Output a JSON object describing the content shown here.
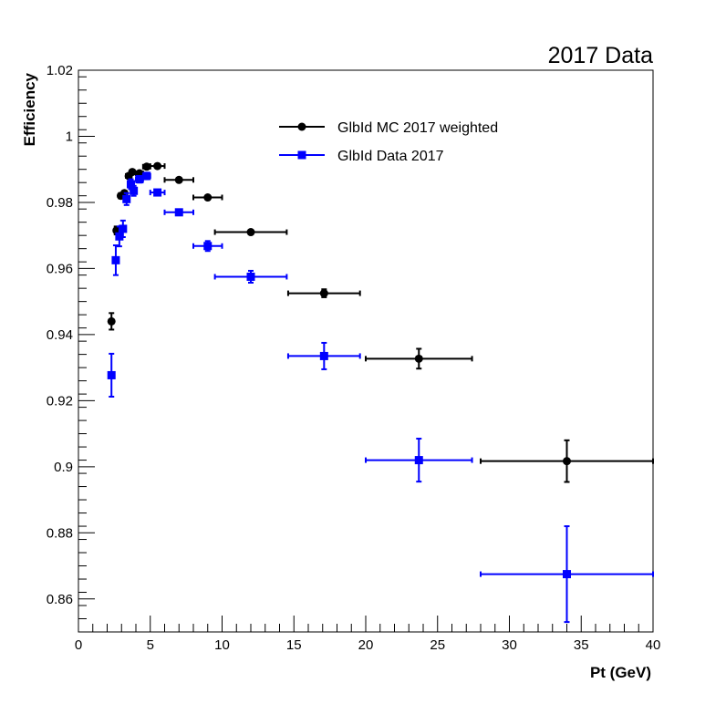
{
  "chart_data": {
    "type": "scatter",
    "title": "2017 Data",
    "xlabel": "Pt (GeV)",
    "ylabel": "Efficiency",
    "xlim": [
      0,
      40
    ],
    "ylim": [
      0.85,
      1.02
    ],
    "grid": false,
    "legend_position": "top-center",
    "x_ticks": [
      0,
      5,
      10,
      15,
      20,
      25,
      30,
      35,
      40
    ],
    "y_ticks": [
      0.86,
      0.88,
      0.9,
      0.92,
      0.94,
      0.96,
      0.98,
      1,
      1.02
    ],
    "x_tick_labels": [
      "0",
      "5",
      "10",
      "15",
      "20",
      "25",
      "30",
      "35",
      "40"
    ],
    "y_tick_labels": [
      "0.86",
      "0.88",
      "0.9",
      "0.92",
      "0.94",
      "0.96",
      "0.98",
      "1",
      "1.02"
    ],
    "series": [
      {
        "name": "GlbId MC 2017 weighted",
        "color": "#000000",
        "marker": "circle",
        "points": [
          {
            "x": 2.3,
            "y": 0.944,
            "xerr": 0.1,
            "yerr": 0.0025
          },
          {
            "x": 2.65,
            "y": 0.9715,
            "xerr": 0.15,
            "yerr": 0.0012
          },
          {
            "x": 2.95,
            "y": 0.982,
            "xerr": 0.15,
            "yerr": 0.0008
          },
          {
            "x": 3.2,
            "y": 0.9828,
            "xerr": 0.1,
            "yerr": 0.0007
          },
          {
            "x": 3.5,
            "y": 0.988,
            "xerr": 0.2,
            "yerr": 0.0005
          },
          {
            "x": 3.75,
            "y": 0.9892,
            "xerr": 0.15,
            "yerr": 0.0004
          },
          {
            "x": 4.25,
            "y": 0.9888,
            "xerr": 0.25,
            "yerr": 0.0004
          },
          {
            "x": 4.75,
            "y": 0.9908,
            "xerr": 0.25,
            "yerr": 0.0003
          },
          {
            "x": 5.5,
            "y": 0.991,
            "xerr": 0.5,
            "yerr": 0.0003
          },
          {
            "x": 7.0,
            "y": 0.9868,
            "xerr": 1.0,
            "yerr": 0.0004
          },
          {
            "x": 9.0,
            "y": 0.9815,
            "xerr": 1.0,
            "yerr": 0.0005
          },
          {
            "x": 12.0,
            "y": 0.971,
            "xerr": 2.5,
            "yerr": 0.0006
          },
          {
            "x": 17.1,
            "y": 0.9525,
            "xerr": 2.5,
            "yerr": 0.0012
          },
          {
            "x": 23.7,
            "y": 0.9327,
            "xerr": 3.7,
            "yerr": 0.003
          },
          {
            "x": 34.0,
            "y": 0.9017,
            "xerr": 6.0,
            "yerr": 0.0063
          }
        ]
      },
      {
        "name": "GlbId Data 2017",
        "color": "#0000ff",
        "marker": "square",
        "points": [
          {
            "x": 2.3,
            "y": 0.9277,
            "xerr": 0.1,
            "yerr": 0.0065
          },
          {
            "x": 2.6,
            "y": 0.9625,
            "xerr": 0.1,
            "yerr": 0.0045
          },
          {
            "x": 2.85,
            "y": 0.9697,
            "xerr": 0.15,
            "yerr": 0.003
          },
          {
            "x": 3.1,
            "y": 0.972,
            "xerr": 0.1,
            "yerr": 0.0025
          },
          {
            "x": 3.35,
            "y": 0.981,
            "xerr": 0.15,
            "yerr": 0.0018
          },
          {
            "x": 3.65,
            "y": 0.9855,
            "xerr": 0.15,
            "yerr": 0.0015
          },
          {
            "x": 3.85,
            "y": 0.9835,
            "xerr": 0.15,
            "yerr": 0.0015
          },
          {
            "x": 4.25,
            "y": 0.987,
            "xerr": 0.25,
            "yerr": 0.001
          },
          {
            "x": 4.75,
            "y": 0.988,
            "xerr": 0.25,
            "yerr": 0.001
          },
          {
            "x": 5.5,
            "y": 0.983,
            "xerr": 0.5,
            "yerr": 0.0008
          },
          {
            "x": 7.0,
            "y": 0.977,
            "xerr": 1.0,
            "yerr": 0.0008
          },
          {
            "x": 9.0,
            "y": 0.9668,
            "xerr": 1.0,
            "yerr": 0.0015
          },
          {
            "x": 12.0,
            "y": 0.9575,
            "xerr": 2.5,
            "yerr": 0.0018
          },
          {
            "x": 17.1,
            "y": 0.9335,
            "xerr": 2.5,
            "yerr": 0.004
          },
          {
            "x": 23.7,
            "y": 0.902,
            "xerr": 3.7,
            "yerr": 0.0065
          },
          {
            "x": 34.0,
            "y": 0.8675,
            "xerr": 6.0,
            "yerr": 0.0145
          }
        ]
      }
    ]
  }
}
